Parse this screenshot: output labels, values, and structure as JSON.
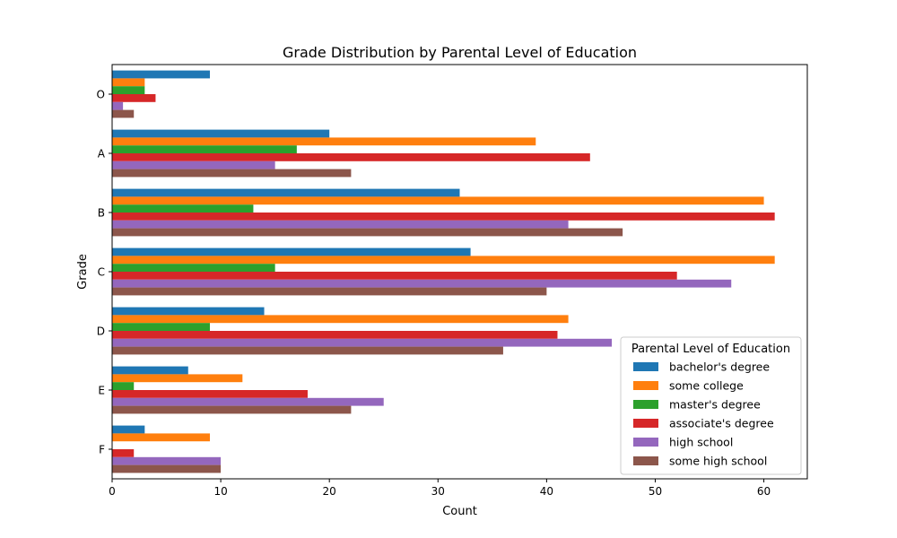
{
  "chart_data": {
    "type": "bar",
    "orientation": "horizontal",
    "title": "Grade Distribution by Parental Level of Education",
    "xlabel": "Count",
    "ylabel": "Grade",
    "categories": [
      "O",
      "A",
      "B",
      "C",
      "D",
      "E",
      "F"
    ],
    "xlim": [
      0,
      64
    ],
    "xticks": [
      0,
      10,
      20,
      30,
      40,
      50,
      60
    ],
    "grid": false,
    "legend": {
      "title": "Parental Level of Education",
      "placement": "lower-right"
    },
    "series": [
      {
        "name": "bachelor's degree",
        "color": "#1f77b4",
        "values": [
          9,
          20,
          32,
          33,
          14,
          7,
          3
        ]
      },
      {
        "name": "some college",
        "color": "#ff7f0e",
        "values": [
          3,
          39,
          60,
          61,
          42,
          12,
          9
        ]
      },
      {
        "name": "master's degree",
        "color": "#2ca02c",
        "values": [
          3,
          17,
          13,
          15,
          9,
          2,
          0
        ]
      },
      {
        "name": "associate's degree",
        "color": "#d62728",
        "values": [
          4,
          44,
          61,
          52,
          41,
          18,
          2
        ]
      },
      {
        "name": "high school",
        "color": "#9467bd",
        "values": [
          1,
          15,
          42,
          57,
          46,
          25,
          10
        ]
      },
      {
        "name": "some high school",
        "color": "#8c564b",
        "values": [
          2,
          22,
          47,
          40,
          36,
          22,
          10
        ]
      }
    ]
  }
}
